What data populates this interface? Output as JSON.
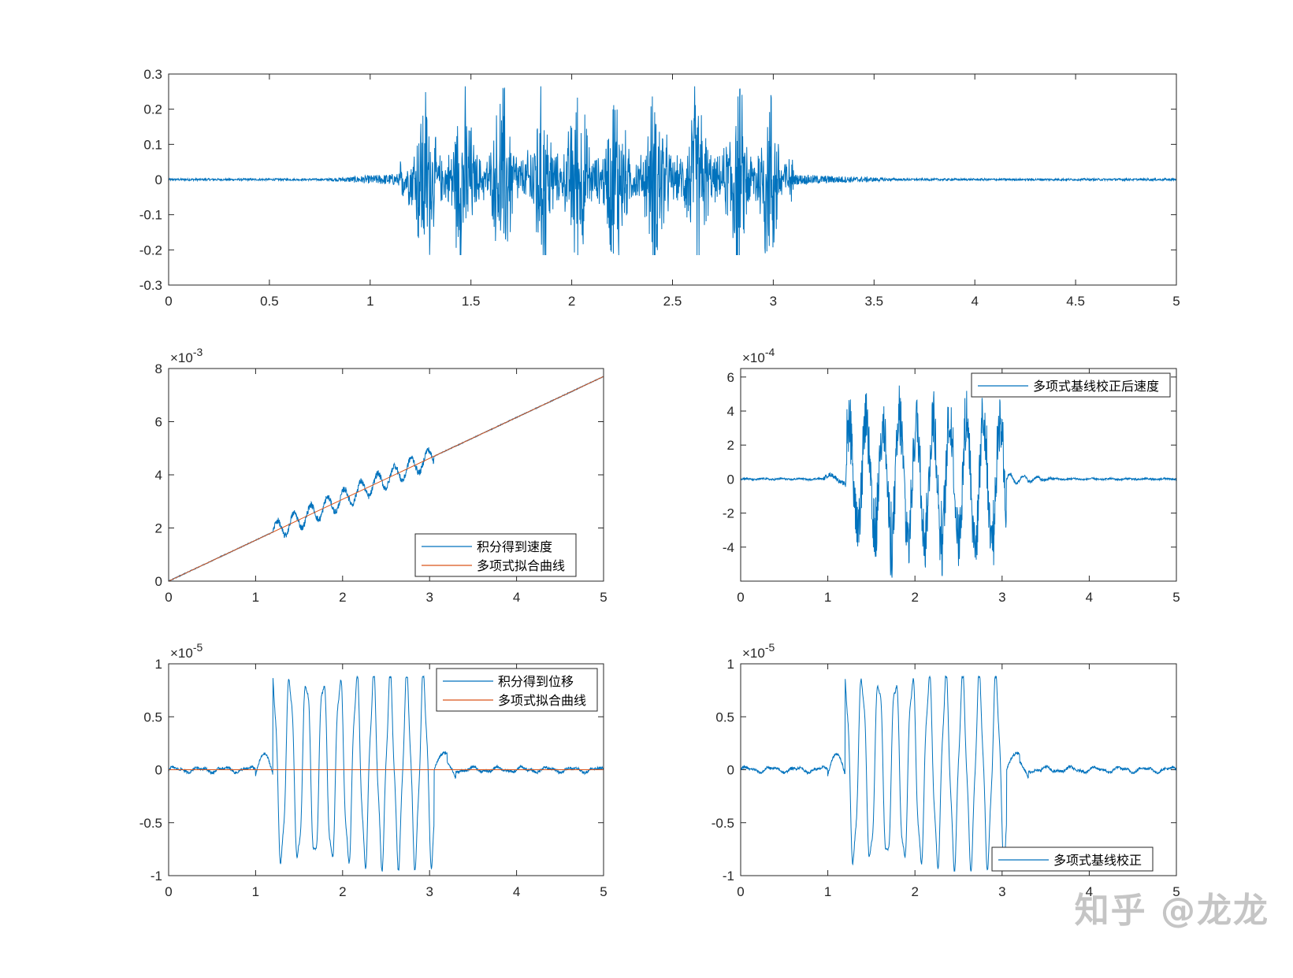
{
  "colors": {
    "series1": "#0072BD",
    "series2": "#D95319",
    "axis": "#262626",
    "background": "#ffffff"
  },
  "watermark": "知乎 @龙龙",
  "chart_data": [
    {
      "type": "line",
      "title": "",
      "xlabel": "",
      "ylabel": "",
      "xlim": [
        0,
        5
      ],
      "ylim": [
        -0.3,
        0.3
      ],
      "xticks": [
        "0",
        "0.5",
        "1",
        "1.5",
        "2",
        "2.5",
        "3",
        "3.5",
        "4",
        "4.5",
        "5"
      ],
      "yticks": [
        "-0.3",
        "-0.2",
        "-0.1",
        "0",
        "0.1",
        "0.2",
        "0.3"
      ],
      "exponent": "",
      "legend": [],
      "series": [
        {
          "kind": "accel",
          "color": "#0072BD"
        }
      ]
    },
    {
      "type": "line",
      "title": "",
      "xlabel": "",
      "ylabel": "",
      "xlim": [
        0,
        5
      ],
      "ylim": [
        0,
        8
      ],
      "xticks": [
        "0",
        "1",
        "2",
        "3",
        "4",
        "5"
      ],
      "yticks": [
        "0",
        "2",
        "4",
        "6",
        "8"
      ],
      "exponent": "×10",
      "exponent_power": "-3",
      "legend": [
        "积分得到速度",
        "多项式拟合曲线"
      ],
      "legend_position": "bottom-right",
      "series": [
        {
          "name": "积分得到速度",
          "kind": "vel_raw",
          "color": "#0072BD"
        },
        {
          "name": "多项式拟合曲线",
          "kind": "vel_fit",
          "color": "#D95319",
          "x": [
            0,
            5
          ],
          "y": [
            0,
            7.7
          ]
        }
      ]
    },
    {
      "type": "line",
      "title": "",
      "xlabel": "",
      "ylabel": "",
      "xlim": [
        0,
        5
      ],
      "ylim": [
        -6,
        6.5
      ],
      "xticks": [
        "0",
        "1",
        "2",
        "3",
        "4",
        "5"
      ],
      "yticks": [
        "-4",
        "-2",
        "0",
        "2",
        "4",
        "6"
      ],
      "exponent": "×10",
      "exponent_power": "-4",
      "legend": [
        "多项式基线校正后速度"
      ],
      "legend_position": "top-right",
      "series": [
        {
          "name": "多项式基线校正后速度",
          "kind": "vel_corr",
          "color": "#0072BD"
        }
      ]
    },
    {
      "type": "line",
      "title": "",
      "xlabel": "",
      "ylabel": "",
      "xlim": [
        0,
        5
      ],
      "ylim": [
        -1,
        1
      ],
      "xticks": [
        "0",
        "1",
        "2",
        "3",
        "4",
        "5"
      ],
      "yticks": [
        "-1",
        "-0.5",
        "0",
        "0.5",
        "1"
      ],
      "exponent": "×10",
      "exponent_power": "-5",
      "legend": [
        "积分得到位移",
        "多项式拟合曲线"
      ],
      "legend_position": "top-right",
      "series": [
        {
          "name": "积分得到位移",
          "kind": "disp",
          "color": "#0072BD"
        },
        {
          "name": "多项式拟合曲线",
          "kind": "flat",
          "color": "#D95319",
          "x": [
            0,
            5
          ],
          "y": [
            0,
            0
          ]
        }
      ]
    },
    {
      "type": "line",
      "title": "",
      "xlabel": "",
      "ylabel": "",
      "xlim": [
        0,
        5
      ],
      "ylim": [
        -1,
        1
      ],
      "xticks": [
        "0",
        "1",
        "2",
        "3",
        "4",
        "5"
      ],
      "yticks": [
        "-1",
        "-0.5",
        "0",
        "0.5",
        "1"
      ],
      "exponent": "×10",
      "exponent_power": "-5",
      "legend": [
        "多项式基线校正"
      ],
      "legend_position": "bottom-right",
      "series": [
        {
          "name": "多项式基线校正",
          "kind": "disp",
          "color": "#0072BD"
        }
      ]
    }
  ]
}
